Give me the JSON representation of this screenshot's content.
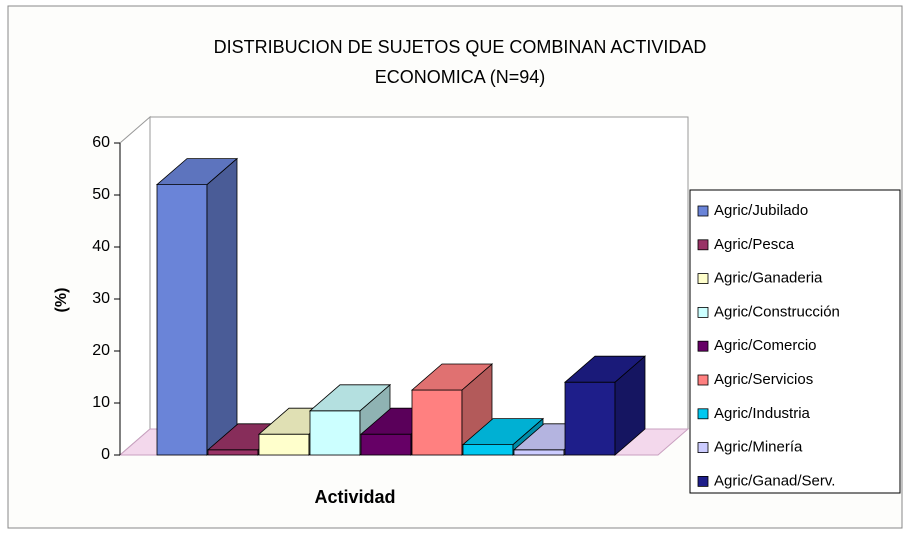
{
  "chart_data": {
    "type": "bar3d",
    "title": [
      "DISTRIBUCION DE SUJETOS QUE COMBINAN ACTIVIDAD",
      "ECONOMICA (N=94)"
    ],
    "x_label": "Actividad",
    "y_label": "(%)",
    "categories": [
      "Agric/Jubilado",
      "Agric/Pesca",
      "Agric/Ganaderia",
      "Agric/Construcción",
      "Agric/Comercio",
      "Agric/Servicios",
      "Agric/Industria",
      "Agric/Minería",
      "Agric/Ganad/Serv."
    ],
    "values": [
      52,
      1,
      4,
      8.5,
      4,
      12.5,
      2,
      1,
      14
    ],
    "colors": [
      "#6a84d8",
      "#993366",
      "#ffffcc",
      "#ccffff",
      "#660066",
      "#ff8080",
      "#00c8f0",
      "#ccccff",
      "#1e1e8a"
    ],
    "ylim": [
      0,
      60
    ],
    "yticks": [
      0,
      10,
      20,
      30,
      40,
      50,
      60
    ],
    "legend": "right"
  }
}
